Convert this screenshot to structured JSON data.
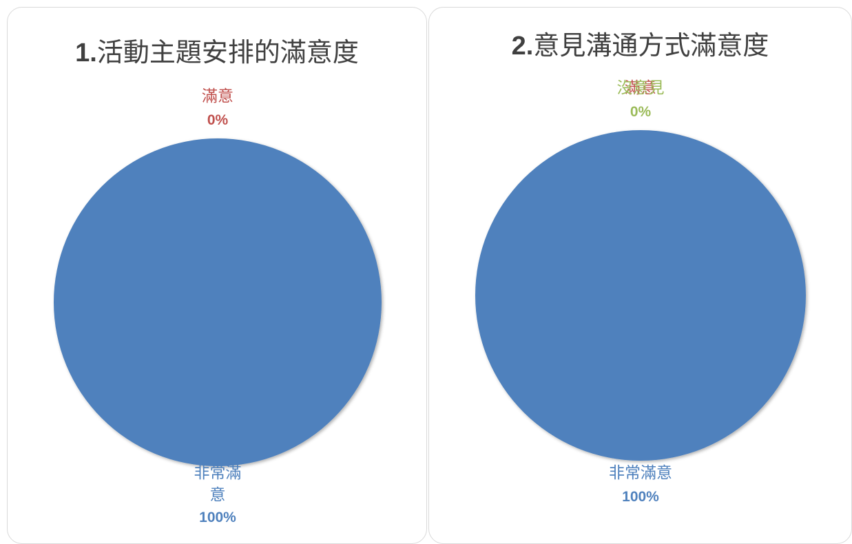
{
  "chart_data": [
    {
      "type": "pie",
      "title_number": "1.",
      "title_text": "活動主題安排的滿意度",
      "slices": [
        {
          "label": "非常滿意",
          "label_lines": [
            "非常滿",
            "意"
          ],
          "value": 100,
          "value_label": "100%",
          "color": "#4f81bd"
        },
        {
          "label": "滿意",
          "label_lines": [
            "滿意"
          ],
          "value": 0,
          "value_label": "0%",
          "color": "#c0504d"
        }
      ]
    },
    {
      "type": "pie",
      "title_number": "2.",
      "title_text": "意見溝通方式滿意度",
      "slices": [
        {
          "label": "非常滿意",
          "label_lines": [
            "非常滿意"
          ],
          "value": 100,
          "value_label": "100%",
          "color": "#4f81bd"
        },
        {
          "label": "滿意",
          "label_lines": [
            "滿意"
          ],
          "value": 0,
          "value_label": "",
          "color": "#c0504d"
        },
        {
          "label": "沒意見",
          "label_lines": [
            "沒意見"
          ],
          "value": 0,
          "value_label": "0%",
          "color": "#9bbb59"
        }
      ]
    }
  ]
}
